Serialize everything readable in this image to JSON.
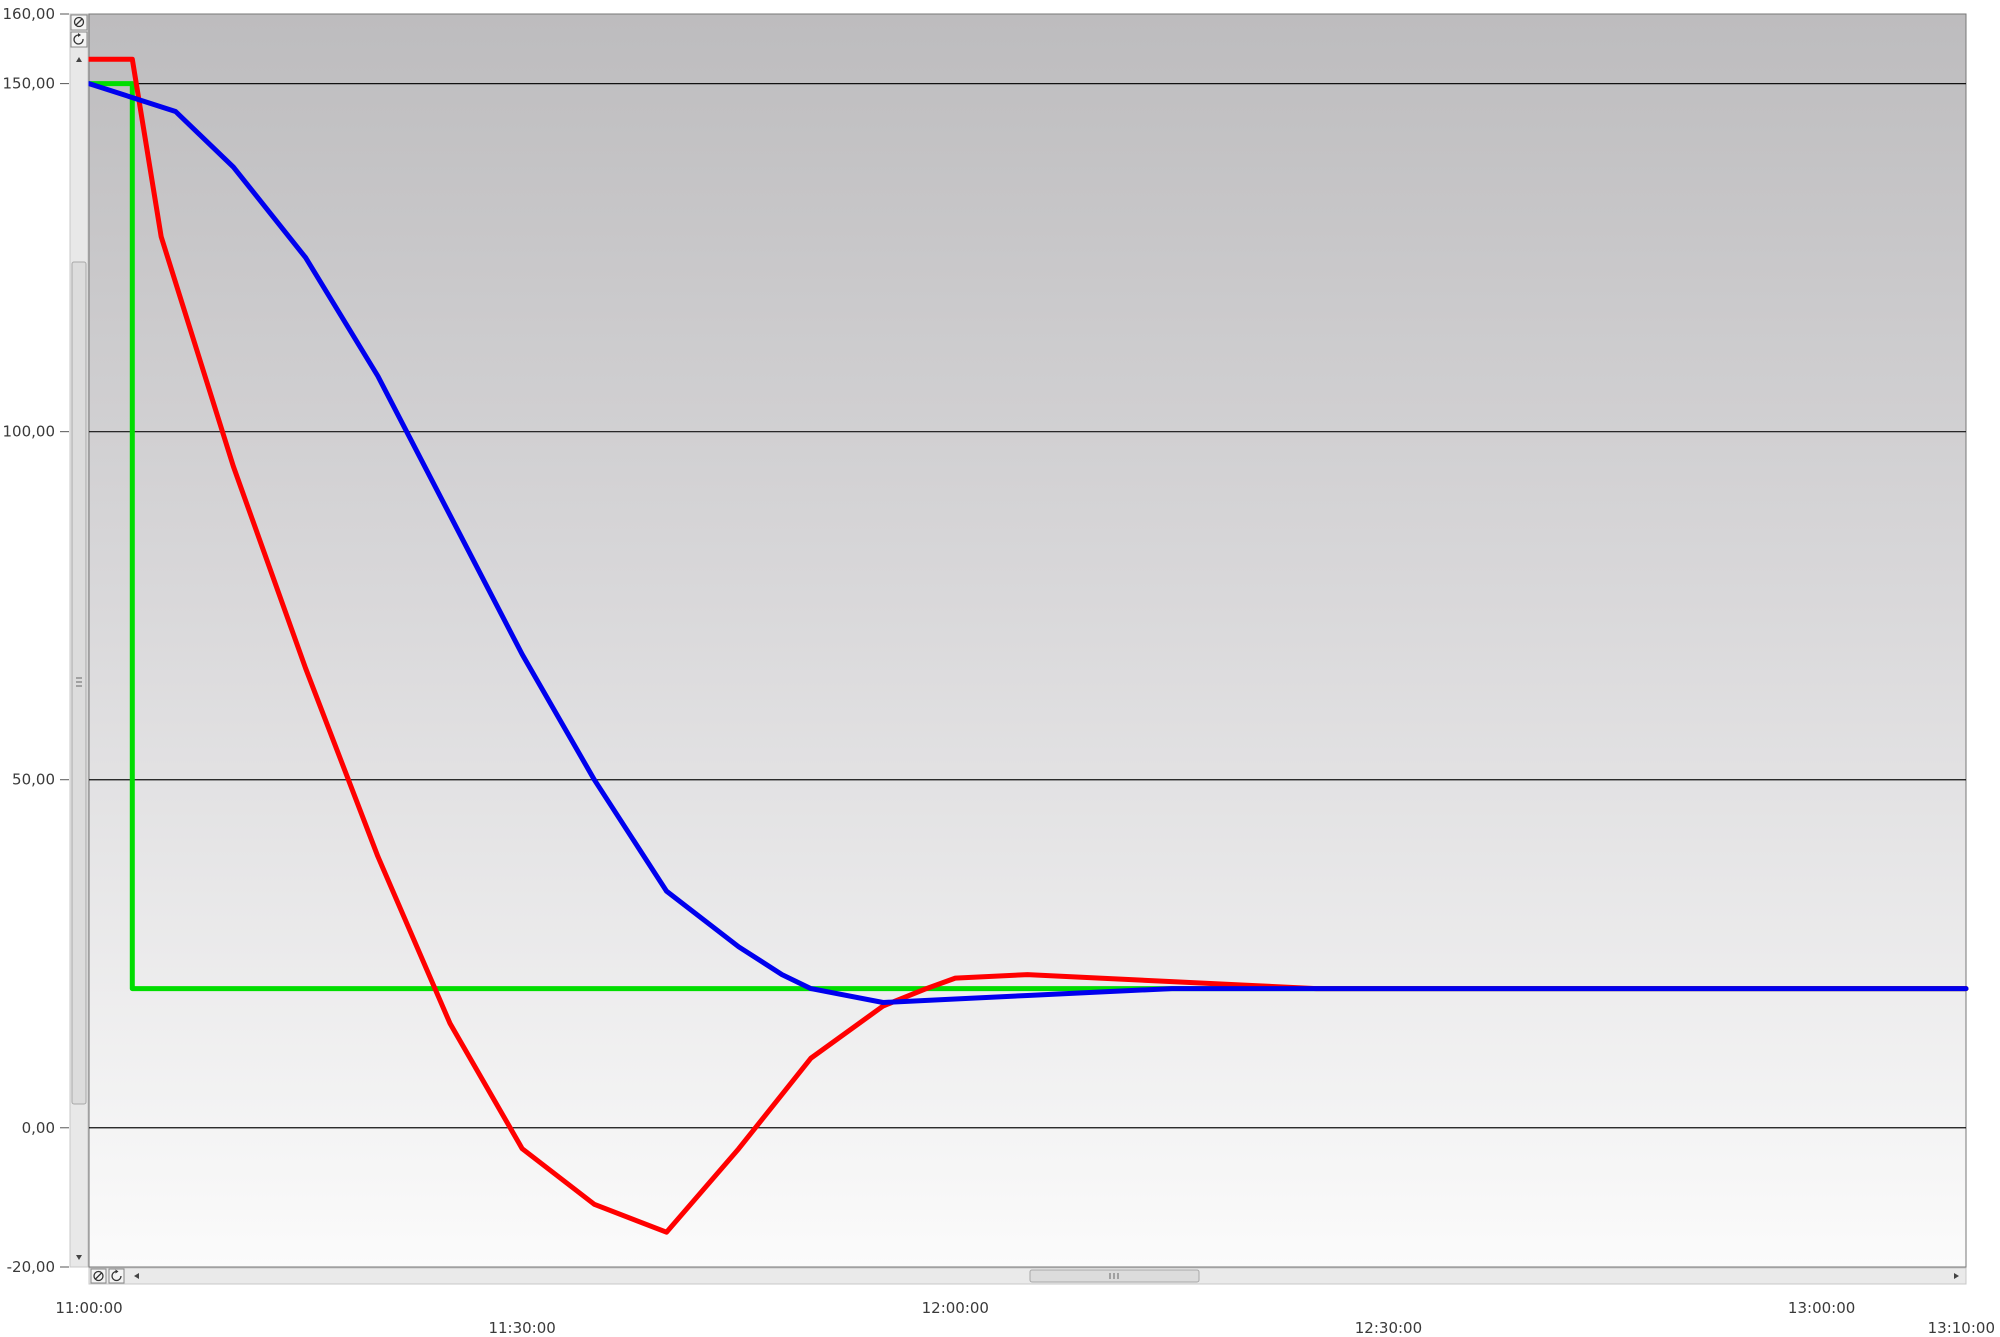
{
  "chart_data": {
    "type": "line",
    "title": "",
    "xlabel": "",
    "ylabel": "",
    "ylim": [
      -20,
      160
    ],
    "xlim": [
      "11:00:00",
      "13:10:00"
    ],
    "grid": true,
    "legend": "none",
    "yticks": [
      {
        "value": 160,
        "label": "160,00"
      },
      {
        "value": 150,
        "label": "150,00"
      },
      {
        "value": 100,
        "label": "100,00"
      },
      {
        "value": 50,
        "label": "50,00"
      },
      {
        "value": 0,
        "label": "0,00"
      },
      {
        "value": -20,
        "label": "-20,00"
      }
    ],
    "gridlines": [
      150,
      100,
      50,
      0
    ],
    "xticks": [
      {
        "value": "11:00:00",
        "label": "11:00:00",
        "row": 1
      },
      {
        "value": "11:30:00",
        "label": "11:30:00",
        "row": 2
      },
      {
        "value": "12:00:00",
        "label": "12:00:00",
        "row": 1
      },
      {
        "value": "12:30:00",
        "label": "12:30:00",
        "row": 2
      },
      {
        "value": "13:00:00",
        "label": "13:00:00",
        "row": 1
      },
      {
        "value": "13:10:00",
        "label": "13:10:00",
        "row": 2
      }
    ],
    "series": [
      {
        "color": "#00dd00",
        "x": [
          "11:00:00",
          "11:03:00",
          "11:03:00",
          "13:10:00"
        ],
        "y": [
          150,
          150,
          20,
          20
        ],
        "shape": "step"
      },
      {
        "color": "#ff0000",
        "x": [
          "11:00:00",
          "11:03:00",
          "11:05:00",
          "11:10:00",
          "11:15:00",
          "11:20:00",
          "11:25:00",
          "11:30:00",
          "11:35:00",
          "11:40:00",
          "11:45:00",
          "11:50:00",
          "11:55:00",
          "11:58:00",
          "12:00:00",
          "12:05:00",
          "12:10:00",
          "12:15:00",
          "12:20:00",
          "12:25:00",
          "12:30:00",
          "12:35:00",
          "12:40:00",
          "12:45:00",
          "12:50:00",
          "12:55:00",
          "13:00:00",
          "13:05:00",
          "13:10:00"
        ],
        "y": [
          153.5,
          153.5,
          128,
          95,
          66,
          39,
          15,
          -3,
          -11,
          -15,
          -3,
          10,
          17.5,
          20,
          21.5,
          22,
          21.5,
          21,
          20.5,
          20,
          20,
          20,
          20,
          20,
          20,
          20,
          20,
          20,
          20
        ]
      },
      {
        "color": "#0000ee",
        "x": [
          "11:00:00",
          "11:06:00",
          "11:10:00",
          "11:15:00",
          "11:20:00",
          "11:25:00",
          "11:30:00",
          "11:35:00",
          "11:40:00",
          "11:45:00",
          "11:48:00",
          "11:50:00",
          "11:55:00",
          "12:00:00",
          "12:05:00",
          "12:10:00",
          "12:15:00",
          "12:20:00",
          "12:25:00",
          "12:30:00",
          "12:35:00",
          "12:40:00",
          "12:45:00",
          "12:50:00",
          "12:55:00",
          "13:00:00",
          "13:05:00",
          "13:10:00"
        ],
        "y": [
          150,
          146,
          138,
          125,
          108,
          88,
          68,
          50,
          34,
          26,
          22,
          20,
          18,
          18.5,
          19,
          19.5,
          20,
          20,
          20,
          20,
          20,
          20,
          20,
          20,
          20,
          20,
          20,
          20
        ]
      }
    ]
  },
  "controls": {
    "y_zoom_reset": "zoom-reset-icon",
    "y_zoom_refresh": "refresh-icon",
    "x_zoom_reset": "zoom-reset-icon",
    "x_zoom_refresh": "refresh-icon",
    "scroll_up": "up-arrow",
    "scroll_down": "down-arrow",
    "scroll_left": "left-arrow",
    "scroll_right": "right-arrow",
    "scroll_thumb_grip": "grip-icon"
  }
}
